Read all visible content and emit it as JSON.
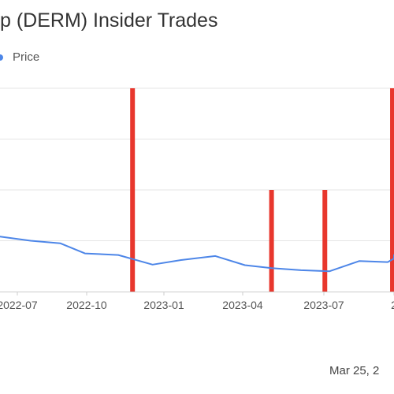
{
  "chart_data": {
    "type": "line",
    "title": "p (DERM) Insider Trades",
    "footer_text": "Mar 25, 2",
    "colors": {
      "price": "#4d86e8",
      "trade": "#e8372d",
      "grid": "#e6e6e6",
      "axis": "#cccccc"
    },
    "legend": [
      {
        "name": "Price",
        "position": "top-left"
      }
    ],
    "grid": true,
    "ylim": [
      0,
      4
    ],
    "x_ticks": [
      "2022-07",
      "2022-10",
      "2023-01",
      "2023-04",
      "2023-07",
      "2"
    ],
    "series": [
      {
        "name": "Price",
        "points": [
          {
            "x": "2022-06-10",
            "y": 1.08
          },
          {
            "x": "2022-06-25",
            "y": 1.05
          },
          {
            "x": "2022-07-15",
            "y": 1.0
          },
          {
            "x": "2022-08-15",
            "y": 0.95
          },
          {
            "x": "2022-09-10",
            "y": 0.75
          },
          {
            "x": "2022-10-15",
            "y": 0.72
          },
          {
            "x": "2022-11-20",
            "y": 0.53
          },
          {
            "x": "2022-12-20",
            "y": 0.62
          },
          {
            "x": "2023-01-25",
            "y": 0.7
          },
          {
            "x": "2023-02-25",
            "y": 0.52
          },
          {
            "x": "2023-03-25",
            "y": 0.46
          },
          {
            "x": "2023-04-25",
            "y": 0.42
          },
          {
            "x": "2023-05-25",
            "y": 0.4
          },
          {
            "x": "2023-06-25",
            "y": 0.6
          },
          {
            "x": "2023-07-25",
            "y": 0.58
          },
          {
            "x": "2023-08-25",
            "y": 0.65
          },
          {
            "x": "2023-09-10",
            "y": 0.72
          }
        ]
      }
    ],
    "trades": [
      {
        "x": "2022-10-30",
        "value": 4.0
      },
      {
        "x": "2023-03-25",
        "value": 2.0
      },
      {
        "x": "2023-05-20",
        "value": 2.0
      },
      {
        "x": "2023-07-30",
        "value": 4.0
      }
    ]
  }
}
